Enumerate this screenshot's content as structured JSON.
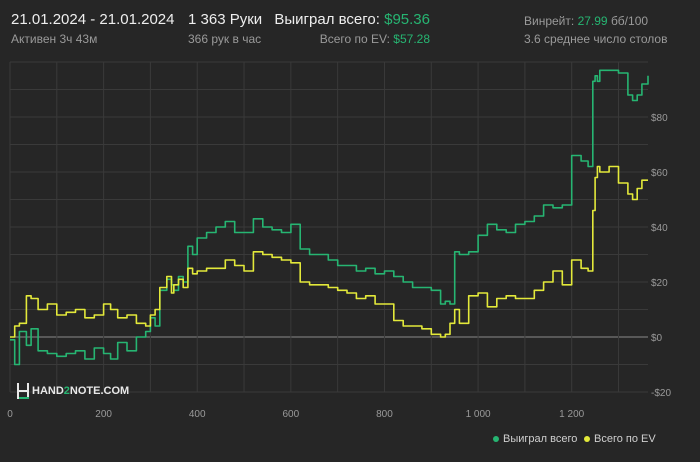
{
  "header": {
    "date_range": "21.01.2024 - 21.01.2024",
    "active_time": "Активен 3ч 43м",
    "hands": "1 363 Руки",
    "hands_per_hour": "366 рук в час",
    "won_label": "Выиграл всего:",
    "won_value": "$95.36",
    "ev_label": "Всего по EV:",
    "ev_value": "$57.28",
    "winrate_label": "Винрейт:",
    "winrate_value": "27.99",
    "winrate_unit": "бб/100",
    "avg_tables": "3.6 среднее число столов"
  },
  "logo": {
    "text_left": "HAND",
    "text_mid": "2",
    "text_right": "NOTE.COM"
  },
  "legend": {
    "won": "Выиграл всего",
    "ev": "Всего по EV"
  },
  "colors": {
    "won": "#26b572",
    "ev": "#e3e93a",
    "background": "#262626",
    "grid": "#3a3a3a",
    "zero": "#8a8a8a"
  },
  "chart_data": {
    "type": "line",
    "xlim": [
      0,
      1363
    ],
    "ylim": [
      -20,
      100
    ],
    "x_ticks": [
      0,
      200,
      400,
      600,
      800,
      1000,
      1200
    ],
    "x_tick_labels": [
      "0",
      "200",
      "400",
      "600",
      "800",
      "1 000",
      "1 200"
    ],
    "y_ticks": [
      -20,
      0,
      20,
      40,
      60,
      80
    ],
    "y_tick_labels": [
      "-$20",
      "$0",
      "$20",
      "$40",
      "$60",
      "$80"
    ],
    "series": [
      {
        "name": "Выиграл всего",
        "color": "#26b572",
        "x": [
          0,
          10,
          20,
          35,
          45,
          60,
          80,
          100,
          120,
          140,
          160,
          180,
          200,
          215,
          230,
          250,
          270,
          290,
          300,
          310,
          320,
          335,
          345,
          350,
          360,
          370,
          380,
          390,
          400,
          420,
          440,
          460,
          480,
          500,
          520,
          540,
          560,
          580,
          600,
          620,
          640,
          660,
          680,
          700,
          720,
          740,
          760,
          780,
          800,
          820,
          840,
          860,
          880,
          900,
          920,
          930,
          940,
          950,
          960,
          980,
          1000,
          1020,
          1040,
          1060,
          1080,
          1100,
          1120,
          1140,
          1160,
          1180,
          1200,
          1220,
          1235,
          1245,
          1250,
          1255,
          1260,
          1280,
          1300,
          1320,
          1330,
          1340,
          1350,
          1363
        ],
        "y": [
          -1,
          -10,
          2,
          -3,
          3,
          -5,
          -6,
          -7,
          -6,
          -5,
          -8,
          -4,
          -6,
          -8,
          -2,
          -5,
          0,
          2,
          7,
          4,
          17,
          21,
          19,
          17,
          22,
          20,
          33,
          30,
          36,
          38,
          40,
          42,
          38,
          38,
          43,
          40,
          39,
          38,
          41,
          32,
          30,
          30,
          28,
          26,
          26,
          24,
          25,
          23,
          24,
          22,
          20,
          18,
          18,
          17,
          12,
          13,
          12,
          31,
          30,
          31,
          37,
          41,
          39,
          38,
          41,
          42,
          44,
          48,
          47,
          48,
          66,
          64,
          62,
          93,
          95,
          93,
          97,
          97,
          96,
          88,
          86,
          88,
          92,
          95
        ]
      },
      {
        "name": "Всего по EV",
        "color": "#e3e93a",
        "x": [
          0,
          10,
          20,
          35,
          45,
          60,
          80,
          100,
          120,
          140,
          160,
          180,
          200,
          215,
          230,
          250,
          270,
          290,
          300,
          310,
          320,
          335,
          345,
          350,
          360,
          370,
          380,
          390,
          400,
          420,
          440,
          460,
          480,
          500,
          520,
          540,
          560,
          580,
          600,
          620,
          640,
          660,
          680,
          700,
          720,
          740,
          760,
          780,
          800,
          820,
          840,
          860,
          880,
          900,
          920,
          930,
          940,
          950,
          960,
          980,
          1000,
          1020,
          1040,
          1060,
          1080,
          1100,
          1120,
          1140,
          1160,
          1180,
          1200,
          1220,
          1235,
          1245,
          1250,
          1255,
          1260,
          1280,
          1300,
          1320,
          1330,
          1340,
          1350,
          1363
        ],
        "y": [
          0,
          4,
          5,
          15,
          14,
          10,
          12,
          8,
          9,
          10,
          7,
          8,
          12,
          10,
          7,
          8,
          5,
          4,
          8,
          10,
          18,
          22,
          16,
          19,
          21,
          18,
          25,
          23,
          24,
          25,
          25,
          28,
          26,
          24,
          31,
          30,
          29,
          28,
          27,
          20,
          19,
          19,
          18,
          17,
          16,
          14,
          15,
          12,
          12,
          6,
          4,
          4,
          3,
          1,
          0,
          1,
          5,
          10,
          5,
          15,
          16,
          11,
          14,
          15,
          14,
          14,
          17,
          20,
          24,
          19,
          28,
          25,
          24,
          46,
          58,
          62,
          60,
          62,
          56,
          52,
          50,
          54,
          57,
          57
        ]
      }
    ]
  }
}
